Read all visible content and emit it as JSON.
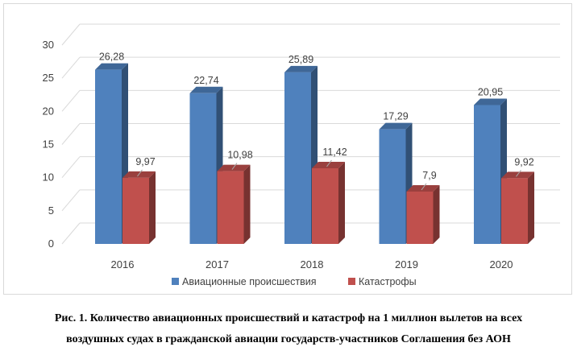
{
  "chart_data": {
    "type": "bar",
    "categories": [
      "2016",
      "2017",
      "2018",
      "2019",
      "2020"
    ],
    "series": [
      {
        "name": "Авиационные происшествия",
        "values": [
          26.28,
          22.74,
          25.89,
          17.29,
          20.95
        ],
        "labels": [
          "26,28",
          "22,74",
          "25,89",
          "17,29",
          "20,95"
        ],
        "color": "#4f81bd"
      },
      {
        "name": "Катастрофы",
        "values": [
          9.97,
          10.98,
          11.42,
          7.9,
          9.92
        ],
        "labels": [
          "9,97",
          "10,98",
          "11,42",
          "7,9",
          "9,92"
        ],
        "color": "#c0504d"
      }
    ],
    "yticks": [
      "0",
      "5",
      "10",
      "15",
      "20",
      "25",
      "30"
    ],
    "ylim": [
      0,
      30
    ],
    "grid": true,
    "legend_position": "bottom"
  },
  "caption": {
    "line1": "Рис. 1. Количество авиационных происшествий и катастроф на 1 миллион вылетов на всех",
    "line2": "воздушных судах в гражданской авиации государств-участников Соглашения без АОН"
  }
}
